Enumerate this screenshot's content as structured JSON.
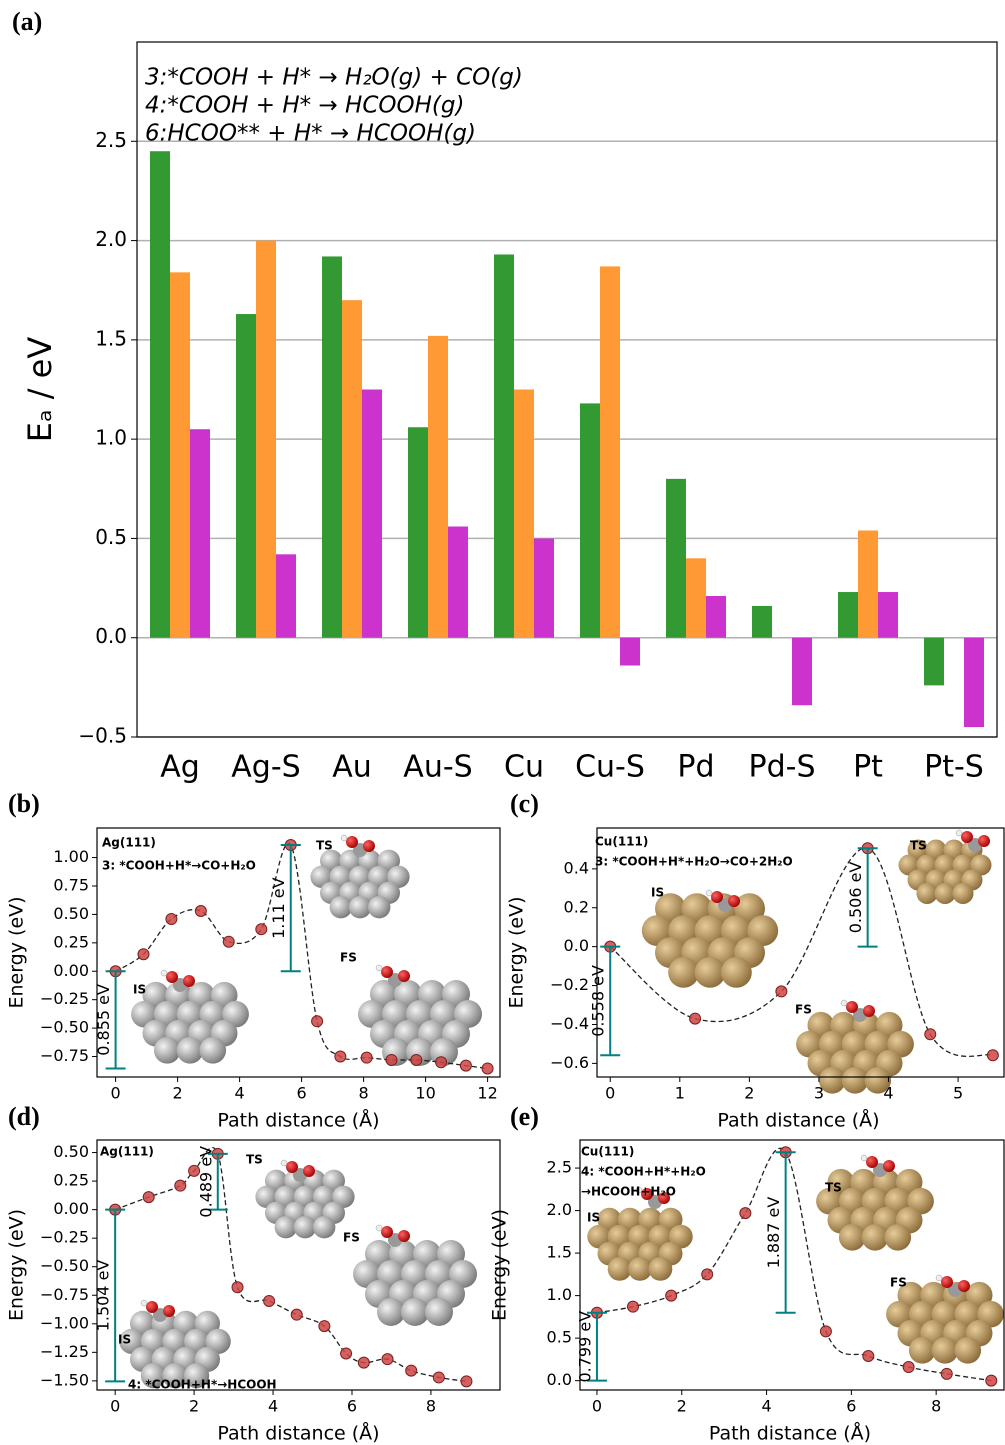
{
  "chart_data": [
    {
      "type": "bar",
      "label": "(a)",
      "ylabel": "Eₐ / eV",
      "categories": [
        "Ag",
        "Ag-S",
        "Au",
        "Au-S",
        "Cu",
        "Cu-S",
        "Pd",
        "Pd-S",
        "Pt",
        "Pt-S"
      ],
      "category_colors": [
        "#0000ff",
        "#0000ff",
        "#0000ff",
        "#0000ff",
        "#00bfbf",
        "#00bfbf",
        "#ff0000",
        "#ff0000",
        "#ff0000",
        "#ff0000"
      ],
      "series": [
        {
          "name": "3:*COOH + H* → H₂O(g) + CO(g)",
          "color": "#339933",
          "values": [
            2.45,
            1.63,
            1.92,
            1.06,
            1.93,
            1.18,
            0.8,
            0.16,
            0.23,
            -0.24
          ]
        },
        {
          "name": "4:*COOH + H* → HCOOH(g)",
          "color": "#ff9933",
          "values": [
            1.84,
            2.0,
            1.7,
            1.52,
            1.25,
            1.87,
            0.4,
            null,
            0.54,
            null
          ]
        },
        {
          "name": "6:HCOO** + H* → HCOOH(g)",
          "color": "#cc33cc",
          "values": [
            1.05,
            0.42,
            1.25,
            0.56,
            0.5,
            -0.14,
            0.21,
            -0.34,
            0.23,
            -0.45
          ]
        }
      ],
      "ylim": [
        -0.5,
        3.0
      ],
      "yticks": [
        {
          "value": -0.5,
          "label": "−0.5"
        },
        {
          "value": 0,
          "label": "0.0"
        },
        0.5,
        {
          "value": 1,
          "label": "1.0"
        },
        1.5,
        {
          "value": 2,
          "label": "2.0"
        },
        2.5
      ],
      "grid": true,
      "legend": "upper left"
    },
    {
      "type": "line",
      "label": "(b)",
      "xlabel": "Path distance (Å)",
      "ylabel": "Energy (eV)",
      "texts": [
        "Ag(111)",
        "3: *COOH+H*→CO+H₂O",
        "TS",
        "IS",
        "FS"
      ],
      "x": [
        0,
        0.9,
        1.8,
        2.75,
        3.65,
        4.7,
        5.65,
        6.5,
        7.25,
        8.1,
        8.9,
        9.7,
        10.5,
        11.3,
        12.0
      ],
      "values": [
        0,
        0.15,
        0.46,
        0.53,
        0.26,
        0.37,
        1.11,
        -0.44,
        -0.75,
        -0.76,
        -0.78,
        -0.78,
        -0.8,
        -0.83,
        -0.855
      ],
      "annotations": [
        {
          "x": 0,
          "y0": 0,
          "y1": -0.855,
          "label": "0.855 eV"
        },
        {
          "x": 5.65,
          "y0": 0,
          "y1": 1.11,
          "label": "1.11 eV"
        }
      ],
      "xlim": [
        -0.6,
        12.4
      ],
      "ylim": [
        -0.93,
        1.26
      ],
      "xticks": [
        0,
        2,
        4,
        6,
        8,
        10,
        12
      ],
      "yticks": [
        {
          "value": -0.75,
          "label": "−0.75"
        },
        {
          "value": -0.5,
          "label": "−0.50"
        },
        {
          "value": -0.25,
          "label": "−0.25"
        },
        {
          "value": 0,
          "label": "0.00"
        },
        0.25,
        {
          "value": 0.5,
          "label": "0.50"
        },
        0.75,
        {
          "value": 1,
          "label": "1.00"
        }
      ],
      "color": "#cc4444"
    },
    {
      "type": "line",
      "label": "(c)",
      "xlabel": "Path distance (Å)",
      "ylabel": "Energy (eV)",
      "texts": [
        "Cu(111)",
        "3: *COOH+H*+H₂O→CO+2H₂O",
        "IS",
        "TS",
        "FS"
      ],
      "x": [
        0,
        1.22,
        2.46,
        3.7,
        4.6,
        5.5
      ],
      "values": [
        0,
        -0.37,
        -0.23,
        0.506,
        -0.45,
        -0.558
      ],
      "annotations": [
        {
          "x": 0,
          "y0": 0,
          "y1": -0.558,
          "label": "0.558 eV"
        },
        {
          "x": 3.7,
          "y0": 0,
          "y1": 0.506,
          "label": "0.506 eV"
        }
      ],
      "xlim": [
        -0.19,
        5.66
      ],
      "ylim": [
        -0.67,
        0.61
      ],
      "xticks": [
        0,
        1,
        2,
        3,
        4,
        5
      ],
      "yticks": [
        {
          "value": -0.6,
          "label": "−0.6"
        },
        {
          "value": -0.4,
          "label": "−0.4"
        },
        {
          "value": -0.2,
          "label": "−0.2"
        },
        {
          "value": 0,
          "label": "0.0"
        },
        0.2,
        0.4
      ],
      "color": "#cc4444"
    },
    {
      "type": "line",
      "label": "(d)",
      "xlabel": "Path distance (Å)",
      "ylabel": "Energy (eV)",
      "texts": [
        "Ag(111)",
        "TS",
        "IS",
        "FS",
        "4: *COOH+H*→HCOOH"
      ],
      "x": [
        0,
        0.85,
        1.65,
        2.0,
        2.6,
        3.1,
        3.9,
        4.6,
        5.3,
        5.85,
        6.3,
        6.9,
        7.5,
        8.2,
        8.9
      ],
      "values": [
        0,
        0.11,
        0.21,
        0.34,
        0.489,
        -0.68,
        -0.8,
        -0.92,
        -1.02,
        -1.26,
        -1.34,
        -1.31,
        -1.41,
        -1.47,
        -1.504
      ],
      "annotations": [
        {
          "x": 0,
          "y0": 0,
          "y1": -1.504,
          "label": "1.504 eV"
        },
        {
          "x": 2.6,
          "y0": 0,
          "y1": 0.489,
          "label": "0.489 eV"
        }
      ],
      "xlim": [
        -0.46,
        9.75
      ],
      "ylim": [
        -1.58,
        0.61
      ],
      "xticks": [
        0,
        2,
        4,
        6,
        8
      ],
      "yticks": [
        {
          "value": -1.5,
          "label": "−1.50"
        },
        {
          "value": -1.25,
          "label": "−1.25"
        },
        {
          "value": -1,
          "label": "−1.00"
        },
        {
          "value": -0.75,
          "label": "−0.75"
        },
        {
          "value": -0.5,
          "label": "−0.50"
        },
        {
          "value": -0.25,
          "label": "−0.25"
        },
        {
          "value": 0,
          "label": "0.00"
        },
        0.25,
        {
          "value": 0.5,
          "label": "0.50"
        }
      ],
      "color": "#cc4444"
    },
    {
      "type": "line",
      "label": "(e)",
      "xlabel": "Path distance (Å)",
      "ylabel": "Energy (eV)",
      "texts": [
        "Cu(111)",
        "4: *COOH+H*+H₂O",
        "→HCOOH+H₂O",
        "IS",
        "TS",
        "FS"
      ],
      "x": [
        0,
        0.85,
        1.75,
        2.6,
        3.5,
        4.45,
        5.4,
        6.4,
        7.35,
        8.25,
        9.3
      ],
      "values": [
        0.799,
        0.87,
        1.0,
        1.25,
        1.97,
        2.686,
        0.58,
        0.29,
        0.16,
        0.08,
        0.0
      ],
      "annotations": [
        {
          "x": 0,
          "y0": 0,
          "y1": 0.799,
          "label": "0.799 eV"
        },
        {
          "x": 4.45,
          "y0": 0.799,
          "y1": 2.686,
          "label": "1.887 eV"
        }
      ],
      "xlim": [
        -0.4,
        9.6
      ],
      "ylim": [
        -0.11,
        2.83
      ],
      "xticks": [
        0,
        2,
        4,
        6,
        8
      ],
      "yticks": [
        {
          "value": 0,
          "label": "0.0"
        },
        0.5,
        {
          "value": 1,
          "label": "1.0"
        },
        1.5,
        {
          "value": 2,
          "label": "2.0"
        },
        2.5
      ],
      "color": "#cc4444"
    }
  ]
}
